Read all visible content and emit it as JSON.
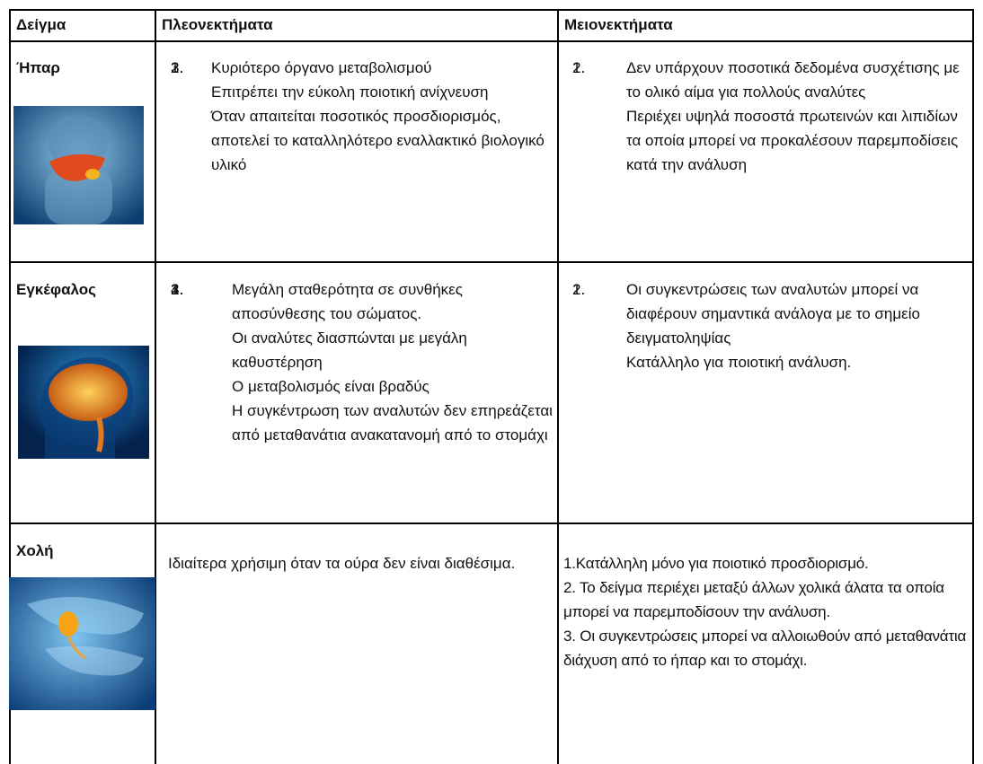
{
  "table": {
    "header": [
      "Δείγμα",
      "Πλεονεκτήματα",
      "Μειονεκτήματα"
    ],
    "rows": [
      {
        "sample": "Ήπαρ",
        "advantages": [
          {
            "num": "1.",
            "text": "Κυριότερο όργανο μεταβολισμού"
          },
          {
            "num": "2.",
            "text": "Επιτρέπει την εύκολη ποιοτική ανίχνευση"
          },
          {
            "num": "3.",
            "text": "Όταν απαιτείται ποσοτικός προσδιορισμός, αποτελεί το καταλληλότερο εναλλακτικό βιολογικό υλικό"
          }
        ],
        "disadvantages": [
          {
            "num": "1.",
            "text": "Δεν υπάρχουν ποσοτικά δεδομένα συσχέτισης με το ολικό αίμα για πολλούς αναλύτες"
          },
          {
            "num": "2.",
            "text": "Περιέχει υψηλά ποσοστά πρωτεινών και λιπιδίων τα οποία μπορεί να προκαλέσουν παρεμποδίσεις κατά την ανάλυση"
          }
        ]
      },
      {
        "sample": "Εγκέφαλος",
        "advantages": [
          {
            "num": "1.",
            "text": "Μεγάλη σταθερότητα σε συνθήκες αποσύνθεσης του σώματος."
          },
          {
            "num": "2.",
            "text": "Οι αναλύτες διασπώνται με μεγάλη καθυστέρηση"
          },
          {
            "num": "3.",
            "text": "Ο μεταβολισμός είναι βραδύς"
          },
          {
            "num": "4.",
            "text": "Η συγκέντρωση των αναλυτών δεν επηρεάζεται από μεταθανάτια ανακατανομή από το στομάχι"
          }
        ],
        "disadvantages": [
          {
            "num": "1.",
            "text": "Οι συγκεντρώσεις των αναλυτών μπορεί να διαφέρουν σημαντικά ανάλογα με το σημείο δειγματοληψίας"
          },
          {
            "num": "2.",
            "text": "Κατάλληλο για ποιοτική ανάλυση."
          }
        ]
      },
      {
        "sample": "Χολή",
        "advantages": [
          "Ιδιαίτερα χρήσιμη όταν τα ούρα δεν είναι διαθέσιμα."
        ],
        "disadvantages": [
          "1.Κατάλληλη μόνο για ποιοτικό προσδιορισμό.",
          "2. Το δείγμα περιέχει μεταξύ άλλων χολικά άλατα τα οποία μπορεί να παρεμποδίσουν την ανάλυση.",
          "3. Οι συγκεντρώσεις μπορεί να αλλοιωθούν από μεταθανάτια διάχυση από το ήπαρ και το στομάχι."
        ]
      }
    ]
  }
}
